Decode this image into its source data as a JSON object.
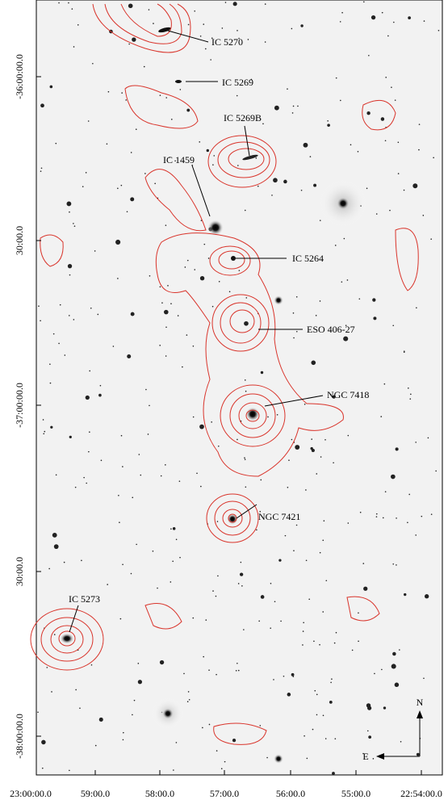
{
  "x_axis_labels": [
    "23:00:00.0",
    "59:00.0",
    "58:00.0",
    "57:00.0",
    "56:00.0",
    "55:00.0",
    "22:54:00.0"
  ],
  "y_axis_labels": [
    "-36:00:00.0",
    "30:00.0",
    "-37:00:00.0",
    "30:00.0",
    "-38:00:00.0"
  ],
  "objects": [
    "IC 5270",
    "IC 5269",
    "IC 5269B",
    "IC 1459",
    "IC 5264",
    "ESO 406-27",
    "NGC 7418",
    "NGC 7421",
    "IC 5273"
  ],
  "compass": {
    "north": "N",
    "east": "E"
  }
}
